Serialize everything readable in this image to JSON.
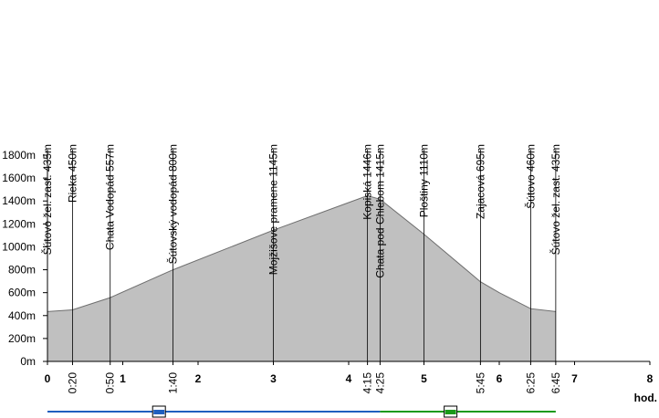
{
  "chart_data": {
    "type": "area",
    "x_unit_label": "hod.",
    "yticks": [
      "0m",
      "200m",
      "400m",
      "600m",
      "800m",
      "1000m",
      "1200m",
      "1400m",
      "1600m",
      "1800m"
    ],
    "y_values": [
      0,
      200,
      400,
      600,
      800,
      1000,
      1200,
      1400,
      1600,
      1800
    ],
    "ylim": [
      0,
      1800
    ],
    "xlim": [
      0,
      8
    ],
    "hour_ticks": [
      "0",
      "1",
      "2",
      "3",
      "4",
      "5",
      "6",
      "7",
      "8"
    ],
    "hour_values": [
      0,
      1,
      2,
      3,
      4,
      5,
      6,
      7,
      8
    ],
    "waypoints": [
      {
        "label": "Šútovo žel. zast. 435m",
        "time": "0",
        "x": 0,
        "elev": 435
      },
      {
        "label": "Rieka 450m",
        "time": "0:20",
        "x": 0.333,
        "elev": 450
      },
      {
        "label": "Chata Vodopád 557m",
        "time": "0:50",
        "x": 0.833,
        "elev": 557
      },
      {
        "label": "Šútovský vodopád 800m",
        "time": "1:40",
        "x": 1.667,
        "elev": 800
      },
      {
        "label": "Mojžišove pramene 1145m",
        "time": "",
        "x": 3.0,
        "elev": 1145
      },
      {
        "label": "Kopiská 1446m",
        "time": "4:15",
        "x": 4.25,
        "elev": 1446
      },
      {
        "label": "Chata pod Chlebom 1415m",
        "time": "4:25",
        "x": 4.417,
        "elev": 1415
      },
      {
        "label": "Ploštiny 1110m",
        "time": "",
        "x": 5.0,
        "elev": 1110
      },
      {
        "label": "Zajacová 695m",
        "time": "5:45",
        "x": 5.75,
        "elev": 695
      },
      {
        "label": "Šútovo 460m",
        "time": "6:25",
        "x": 6.417,
        "elev": 460
      },
      {
        "label": "Šútovo žel. zast. 435m",
        "time": "6:45",
        "x": 6.75,
        "elev": 435
      }
    ],
    "profile": {
      "x": [
        0,
        0.333,
        0.833,
        1.667,
        3.0,
        4.25,
        4.417,
        5.0,
        5.75,
        6.0,
        6.417,
        6.75
      ],
      "y": [
        435,
        450,
        557,
        800,
        1145,
        1446,
        1415,
        1110,
        695,
        600,
        460,
        435
      ]
    },
    "route_bar": [
      {
        "segment": "ascent",
        "from": 0,
        "to": 4.417,
        "color": "#1f5fbf"
      },
      {
        "segment": "descent",
        "from": 4.417,
        "to": 6.75,
        "color": "#1a9a1a"
      }
    ],
    "area_color": "#c0c0c0",
    "grid": false
  }
}
